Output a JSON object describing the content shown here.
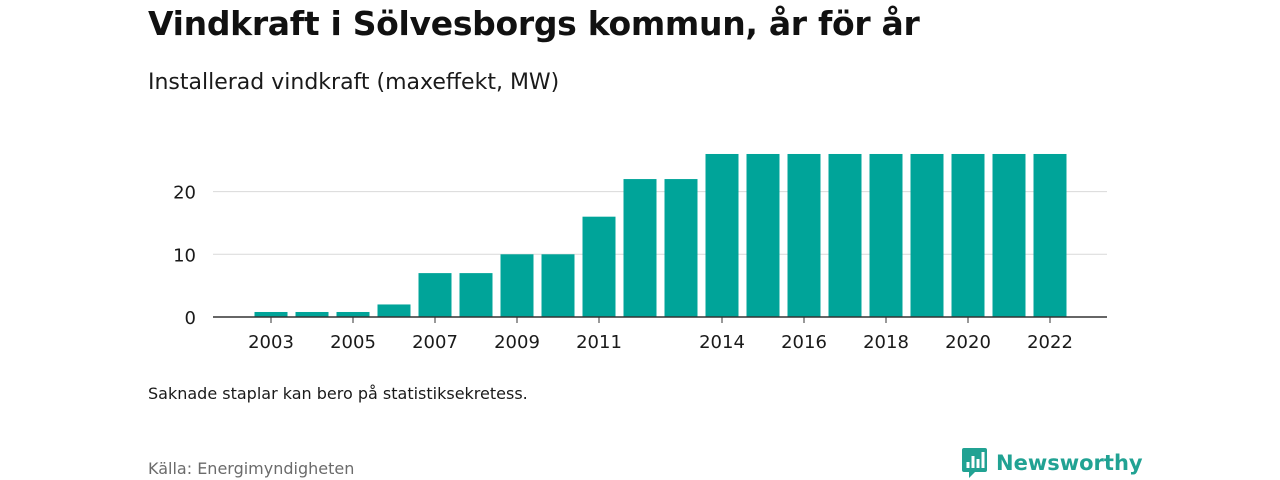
{
  "header": {
    "title": "Vindkraft i Sölvesborgs kommun, år för år",
    "subtitle": "Installerad vindkraft (maxeffekt, MW)"
  },
  "footer": {
    "note": "Saknade staplar kan bero på statistiksekretess.",
    "source": "Källa: Energimyndigheten",
    "brand": "Newsworthy"
  },
  "colors": {
    "bar": "#00a499",
    "grid": "#d9d9d9",
    "axis": "#333333",
    "brand": "#21a293"
  },
  "chart_data": {
    "type": "bar",
    "title": "Vindkraft i Sölvesborgs kommun, år för år",
    "subtitle": "Installerad vindkraft (maxeffekt, MW)",
    "categories": [
      2003,
      2004,
      2005,
      2006,
      2007,
      2008,
      2009,
      2010,
      2011,
      2012,
      2013,
      2014,
      2015,
      2016,
      2017,
      2018,
      2019,
      2020,
      2021,
      2022
    ],
    "values": [
      0.8,
      0.8,
      0.8,
      2,
      7,
      7,
      10,
      10,
      16,
      22,
      22,
      26,
      26,
      26,
      26,
      26,
      26,
      26,
      26,
      26
    ],
    "x_tick_labels": [
      "2003",
      "2005",
      "2007",
      "2009",
      "2011",
      "2014",
      "2016",
      "2018",
      "2020",
      "2022"
    ],
    "y_ticks": [
      0,
      10,
      20
    ],
    "ylim": [
      0,
      26
    ],
    "grid": true,
    "xlabel": "",
    "ylabel": ""
  }
}
